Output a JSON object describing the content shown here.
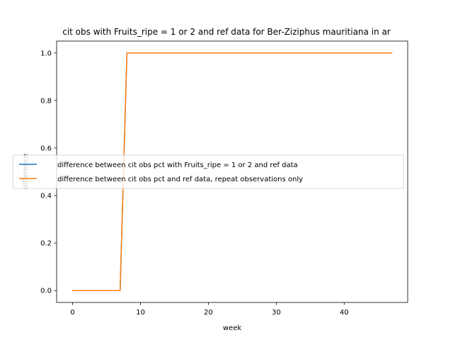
{
  "chart_data": {
    "type": "line",
    "title": "cit obs with Fruits_ripe = 1 or 2 and ref data for Ber-Ziziphus mauritiana in ar",
    "xlabel": "week",
    "ylabel": "difference",
    "xlim": [
      -2.35,
      49.35
    ],
    "ylim": [
      -0.05,
      1.05
    ],
    "xticks": [
      0,
      10,
      20,
      30,
      40
    ],
    "yticks": [
      0.0,
      0.2,
      0.4,
      0.6,
      0.8,
      1.0
    ],
    "xtick_labels": [
      "0",
      "10",
      "20",
      "30",
      "40"
    ],
    "ytick_labels": [
      "0.0",
      "0.2",
      "0.4",
      "0.6",
      "0.8",
      "1.0"
    ],
    "grid": false,
    "legend_position": "center-left",
    "series": [
      {
        "name": "difference between cit obs pct with Fruits_ripe = 1 or 2 and ref data",
        "color": "#1f77b4",
        "x": [
          0,
          1,
          2,
          3,
          4,
          5,
          6,
          7,
          8,
          9,
          10,
          11,
          12,
          13,
          14,
          15,
          16,
          17,
          18,
          19,
          20,
          21,
          22,
          23,
          24,
          25,
          26,
          27,
          28,
          29,
          30,
          31,
          32,
          33,
          34,
          35,
          36,
          37,
          38,
          39,
          40,
          41,
          42,
          43,
          44,
          45,
          46,
          47
        ],
        "values": [
          0,
          0,
          0,
          0,
          0,
          0,
          0,
          0,
          1,
          1,
          1,
          1,
          1,
          1,
          1,
          1,
          1,
          1,
          1,
          1,
          1,
          1,
          1,
          1,
          1,
          1,
          1,
          1,
          1,
          1,
          1,
          1,
          1,
          1,
          1,
          1,
          1,
          1,
          1,
          1,
          1,
          1,
          1,
          1,
          1,
          1,
          1,
          1
        ]
      },
      {
        "name": "difference between cit obs pct and ref data, repeat observations only",
        "color": "#ff7f0e",
        "x": [
          0,
          1,
          2,
          3,
          4,
          5,
          6,
          7,
          8,
          9,
          10,
          11,
          12,
          13,
          14,
          15,
          16,
          17,
          18,
          19,
          20,
          21,
          22,
          23,
          24,
          25,
          26,
          27,
          28,
          29,
          30,
          31,
          32,
          33,
          34,
          35,
          36,
          37,
          38,
          39,
          40,
          41,
          42,
          43,
          44,
          45,
          46,
          47
        ],
        "values": [
          0,
          0,
          0,
          0,
          0,
          0,
          0,
          0,
          1,
          1,
          1,
          1,
          1,
          1,
          1,
          1,
          1,
          1,
          1,
          1,
          1,
          1,
          1,
          1,
          1,
          1,
          1,
          1,
          1,
          1,
          1,
          1,
          1,
          1,
          1,
          1,
          1,
          1,
          1,
          1,
          1,
          1,
          1,
          1,
          1,
          1,
          1,
          1
        ]
      }
    ]
  }
}
